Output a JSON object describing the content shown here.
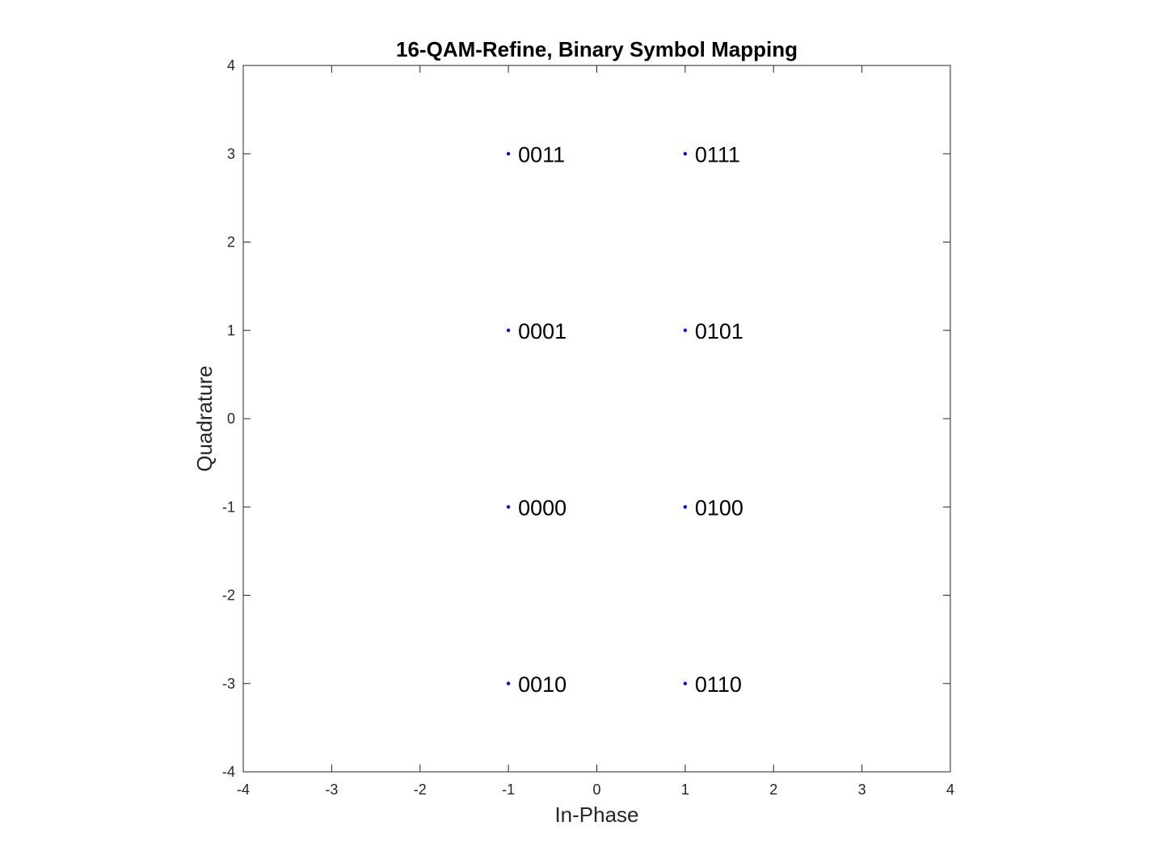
{
  "chart_data": {
    "type": "scatter",
    "title": "16-QAM-Refine, Binary Symbol Mapping",
    "xlabel": "In-Phase",
    "ylabel": "Quadrature",
    "xlim": [
      -4,
      4
    ],
    "ylim": [
      -4,
      4
    ],
    "xticks": [
      -4,
      -3,
      -2,
      -1,
      0,
      1,
      2,
      3,
      4
    ],
    "yticks": [
      -4,
      -3,
      -2,
      -1,
      0,
      1,
      2,
      3,
      4
    ],
    "xtick_labels": [
      "-4",
      "-3",
      "-2",
      "-1",
      "0",
      "1",
      "2",
      "3",
      "4"
    ],
    "ytick_labels": [
      "-4",
      "-3",
      "-2",
      "-1",
      "0",
      "1",
      "2",
      "3",
      "4"
    ],
    "grid": false,
    "box": true,
    "marker_color": "#0000ff",
    "points": [
      {
        "x": -1,
        "y": 3,
        "label": "0011"
      },
      {
        "x": 1,
        "y": 3,
        "label": "0111"
      },
      {
        "x": -1,
        "y": 1,
        "label": "0001"
      },
      {
        "x": 1,
        "y": 1,
        "label": "0101"
      },
      {
        "x": -1,
        "y": -1,
        "label": "0000"
      },
      {
        "x": 1,
        "y": -1,
        "label": "0100"
      },
      {
        "x": -1,
        "y": -3,
        "label": "0010"
      },
      {
        "x": 1,
        "y": -3,
        "label": "0110"
      }
    ]
  }
}
